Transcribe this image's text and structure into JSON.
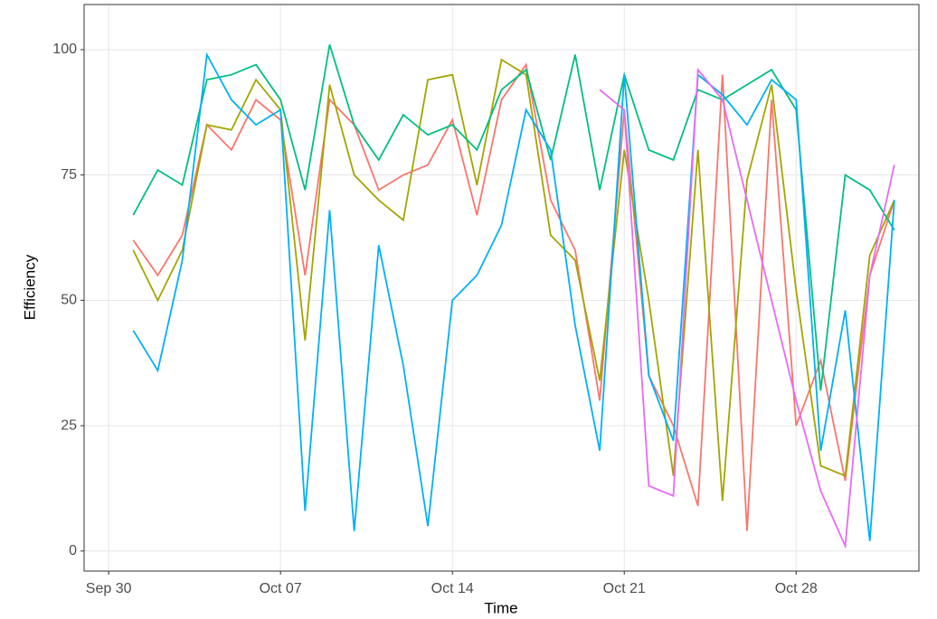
{
  "chart_data": {
    "type": "line",
    "x_label": "Time",
    "y_label": "Efficiency",
    "x": [
      "Oct 01",
      "Oct 02",
      "Oct 03",
      "Oct 04",
      "Oct 05",
      "Oct 06",
      "Oct 07",
      "Oct 08",
      "Oct 09",
      "Oct 10",
      "Oct 11",
      "Oct 12",
      "Oct 13",
      "Oct 14",
      "Oct 15",
      "Oct 16",
      "Oct 17",
      "Oct 18",
      "Oct 19",
      "Oct 20",
      "Oct 21",
      "Oct 22",
      "Oct 23",
      "Oct 24",
      "Oct 25",
      "Oct 26",
      "Oct 27",
      "Oct 28",
      "Oct 29",
      "Oct 30",
      "Oct 31",
      "Nov 01"
    ],
    "series": [
      {
        "color": "#F8766D",
        "values": [
          62,
          55,
          63,
          85,
          80,
          90,
          86,
          55,
          90,
          85,
          72,
          75,
          77,
          86,
          67,
          90,
          97,
          70,
          60,
          30,
          88,
          35,
          25,
          9,
          95,
          4,
          90,
          25,
          38,
          14,
          55,
          70
        ]
      },
      {
        "color": "#A3A500",
        "values": [
          60,
          50,
          60,
          85,
          84,
          94,
          88,
          42,
          93,
          75,
          70,
          66,
          94,
          95,
          73,
          98,
          95,
          63,
          58,
          34,
          80,
          50,
          15,
          80,
          10,
          74,
          93,
          52,
          17,
          15,
          59,
          70
        ]
      },
      {
        "color": "#00BF7D",
        "values": [
          67,
          76,
          73,
          94,
          95,
          97,
          90,
          72,
          101,
          85,
          78,
          87,
          83,
          85,
          80,
          92,
          96,
          78,
          99,
          72,
          95,
          80,
          78,
          92,
          90,
          93,
          96,
          88,
          32,
          75,
          72,
          64
        ]
      },
      {
        "color": "#00B0F6",
        "values": [
          44,
          36,
          58,
          99,
          90,
          85,
          88,
          8,
          68,
          4,
          61,
          37,
          5,
          50,
          55,
          65,
          88,
          80,
          45,
          20,
          95,
          35,
          22,
          95,
          91,
          85,
          94,
          90,
          20,
          48,
          2,
          70
        ]
      },
      {
        "color": "#E76BF3",
        "values": [
          null,
          null,
          null,
          null,
          null,
          null,
          null,
          null,
          null,
          null,
          null,
          null,
          null,
          null,
          null,
          null,
          null,
          null,
          null,
          92,
          88,
          13,
          11,
          96,
          90,
          70,
          50,
          30,
          12,
          1,
          55,
          77
        ]
      }
    ],
    "xlim": [
      "Sep 29",
      "Nov 02"
    ],
    "xticks": [
      "Sep 30",
      "Oct 07",
      "Oct 14",
      "Oct 21",
      "Oct 28"
    ],
    "ylim": [
      -4,
      109
    ],
    "yticks": [
      0,
      25,
      50,
      75,
      100
    ],
    "grid": true
  }
}
